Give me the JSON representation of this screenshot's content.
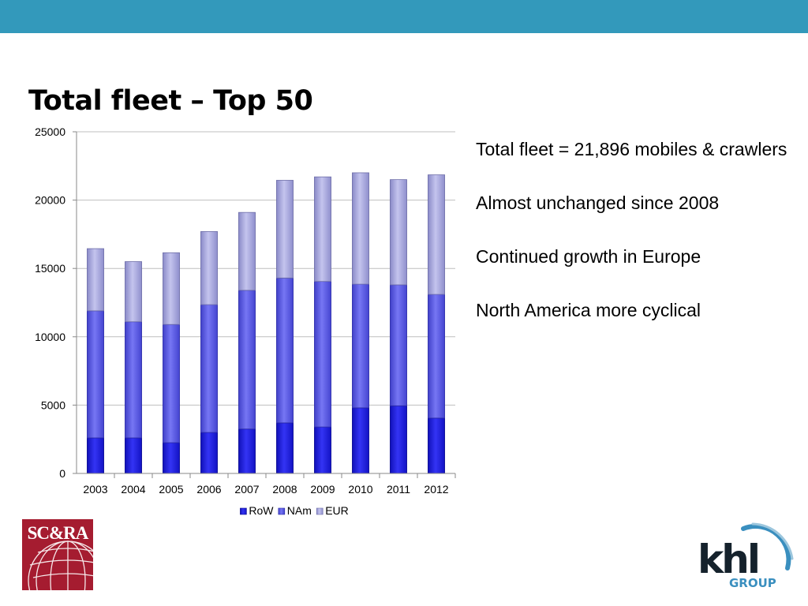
{
  "slide": {
    "title": "Total fleet – Top 50",
    "accent_color": "#3399bb",
    "notes": [
      "Total fleet = 21,896 mobiles & crawlers",
      "Almost unchanged since 2008",
      "Continued growth in Europe",
      "North America more cyclical"
    ]
  },
  "logos": {
    "left": {
      "icon": "scra-logo",
      "text": "SC&RA"
    },
    "right": {
      "icon": "khl-group-logo",
      "text": "khl",
      "subtext": "GROUP"
    }
  },
  "chart_data": {
    "type": "bar",
    "stacked": true,
    "title": "",
    "xlabel": "",
    "ylabel": "",
    "categories": [
      "2003",
      "2004",
      "2005",
      "2006",
      "2007",
      "2008",
      "2009",
      "2010",
      "2011",
      "2012"
    ],
    "series": [
      {
        "name": "RoW",
        "color": "#1a1adc",
        "values": [
          2600,
          2600,
          2250,
          3000,
          3250,
          3700,
          3400,
          4800,
          4950,
          4050
        ]
      },
      {
        "name": "NAm",
        "color": "#5a5ae6",
        "values": [
          9300,
          8500,
          8650,
          9350,
          10150,
          10600,
          10650,
          9050,
          8850,
          9050
        ]
      },
      {
        "name": "EUR",
        "color": "#a4a4e2",
        "values": [
          4550,
          4400,
          5250,
          5350,
          5700,
          7150,
          7650,
          8150,
          7700,
          8750
        ]
      }
    ],
    "ylim": [
      0,
      25000
    ],
    "yticks": [
      "0",
      "5000",
      "10000",
      "15000",
      "20000",
      "25000"
    ],
    "grid": true,
    "legend_position": "bottom"
  }
}
